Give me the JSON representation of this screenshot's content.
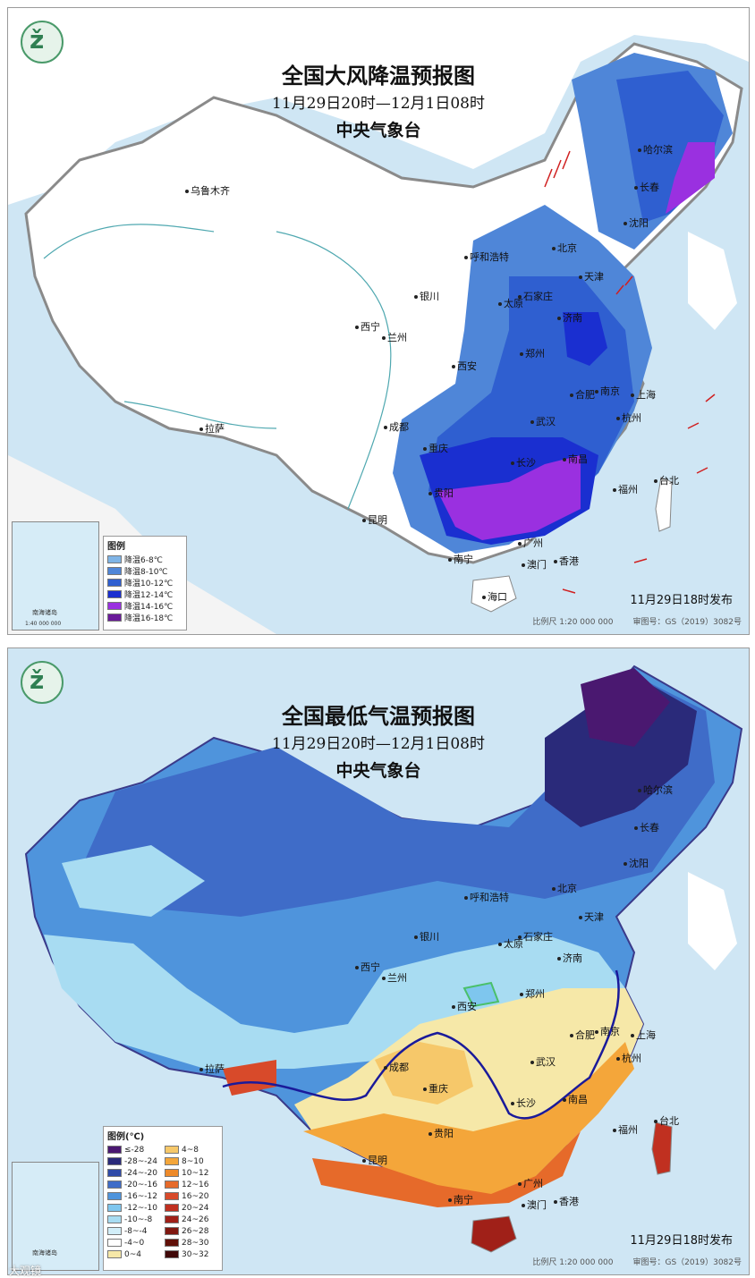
{
  "map1": {
    "title": "全国大风降温预报图",
    "period": "11月29日20时—12月1日08时",
    "agency": "中央气象台",
    "issued": "11月29日18时发布",
    "scale": "比例尺 1:20 000 000",
    "review_no": "审图号：GS（2019）3082号",
    "inset_label": "南海诸岛",
    "inset_scale": "1:40 000 000",
    "legend_title": "图例",
    "legend": [
      {
        "label": "降温6-8℃",
        "color": "#7fb4e6"
      },
      {
        "label": "降温8-10℃",
        "color": "#4f86d8"
      },
      {
        "label": "降温10-12℃",
        "color": "#2f5fd0"
      },
      {
        "label": "降温12-14℃",
        "color": "#1a2fd0"
      },
      {
        "label": "降温14-16℃",
        "color": "#9a30e0"
      },
      {
        "label": "降温16-18℃",
        "color": "#6a1a9a"
      }
    ],
    "cities": [
      "乌鲁木齐",
      "哈尔滨",
      "长春",
      "沈阳",
      "呼和浩特",
      "北京",
      "天津",
      "石家庄",
      "银川",
      "太原",
      "西宁",
      "兰州",
      "济南",
      "郑州",
      "西安",
      "合肥",
      "南京",
      "上海",
      "武汉",
      "杭州",
      "成都",
      "重庆",
      "拉萨",
      "长沙",
      "南昌",
      "台北",
      "福州",
      "贵阳",
      "昆明",
      "南宁",
      "广州",
      "澳门",
      "香港",
      "海口"
    ]
  },
  "map2": {
    "title": "全国最低气温预报图",
    "period": "11月29日20时—12月1日08时",
    "agency": "中央气象台",
    "issued": "11月29日18时发布",
    "scale": "比例尺 1:20 000 000",
    "review_no": "审图号：GS（2019）3082号",
    "inset_label": "南海诸岛",
    "legend_title": "图例(℃)",
    "legend_left": [
      {
        "label": "≤-28",
        "color": "#4a1870"
      },
      {
        "label": "-28~-24",
        "color": "#2a2a7a"
      },
      {
        "label": "-24~-20",
        "color": "#2f4aa8"
      },
      {
        "label": "-20~-16",
        "color": "#3f6cc8"
      },
      {
        "label": "-16~-12",
        "color": "#4f94dc"
      },
      {
        "label": "-12~-10",
        "color": "#7ec6ee"
      },
      {
        "label": "-10~-8",
        "color": "#a8dcf2"
      },
      {
        "label": "-8~-4",
        "color": "#d2eef8"
      },
      {
        "label": "-4~0",
        "color": "#ffffff"
      },
      {
        "label": "0~4",
        "color": "#f6e8a8"
      }
    ],
    "legend_right": [
      {
        "label": "4~8",
        "color": "#f6c86a"
      },
      {
        "label": "8~10",
        "color": "#f4a63a"
      },
      {
        "label": "10~12",
        "color": "#ee8a2a"
      },
      {
        "label": "12~16",
        "color": "#e66a2a"
      },
      {
        "label": "16~20",
        "color": "#d84a2a"
      },
      {
        "label": "20~24",
        "color": "#c03020"
      },
      {
        "label": "24~26",
        "color": "#a02018"
      },
      {
        "label": "26~28",
        "color": "#801810"
      },
      {
        "label": "28~30",
        "color": "#601008"
      },
      {
        "label": "30~32",
        "color": "#400808"
      }
    ],
    "cities": [
      "哈尔滨",
      "长春",
      "沈阳",
      "呼和浩特",
      "北京",
      "天津",
      "石家庄",
      "银川",
      "太原",
      "西宁",
      "兰州",
      "济南",
      "郑州",
      "西安",
      "合肥",
      "南京",
      "上海",
      "武汉",
      "杭州",
      "成都",
      "重庆",
      "拉萨",
      "长沙",
      "南昌",
      "台北",
      "福州",
      "贵阳",
      "昆明",
      "南宁",
      "广州",
      "澳门",
      "香港"
    ]
  },
  "watermark": "大观镜"
}
